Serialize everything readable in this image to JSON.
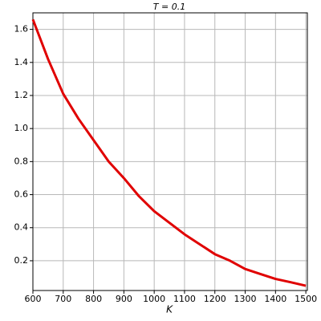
{
  "chart_data": {
    "type": "line",
    "title": "T = 0.1",
    "x_label": "K",
    "x": [
      600,
      650,
      700,
      750,
      800,
      850,
      900,
      950,
      1000,
      1050,
      1100,
      1150,
      1200,
      1250,
      1300,
      1350,
      1400,
      1450,
      1500
    ],
    "series": [
      {
        "color": "#e00000",
        "values": [
          1.66,
          1.42,
          1.21,
          1.06,
          0.93,
          0.8,
          0.7,
          0.59,
          0.5,
          0.43,
          0.36,
          0.3,
          0.24,
          0.2,
          0.15,
          0.12,
          0.09,
          0.07,
          0.049
        ]
      }
    ],
    "xlim": [
      600,
      1505
    ],
    "ylim": [
      0.02,
      1.7
    ],
    "xticks": [
      600,
      700,
      800,
      900,
      1000,
      1100,
      1200,
      1300,
      1400,
      1500
    ],
    "yticks": [
      0.2,
      0.4,
      0.6,
      0.8,
      1.0,
      1.2,
      1.4,
      1.6
    ],
    "grid": true
  }
}
